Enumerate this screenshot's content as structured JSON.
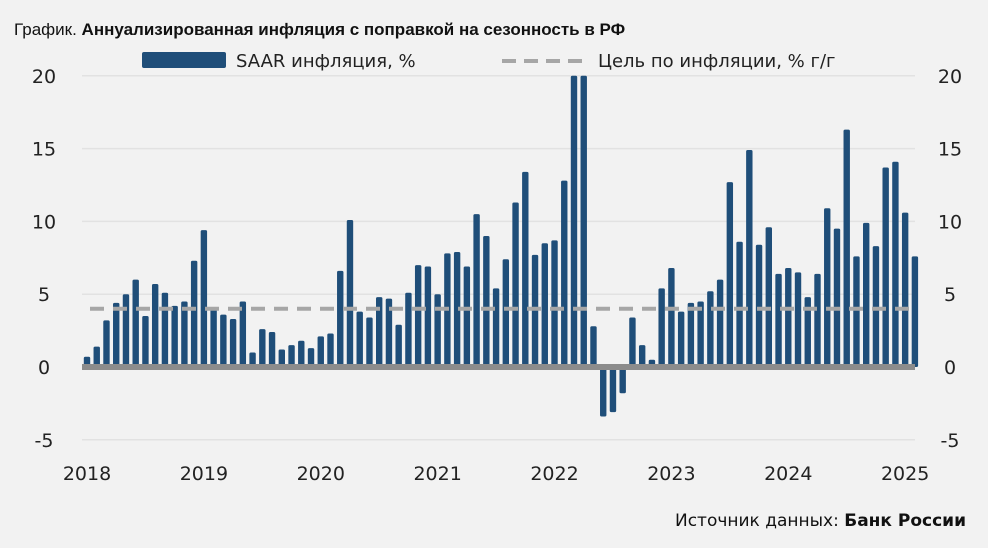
{
  "header": {
    "prefix": "График.",
    "title": "Аннуализированная инфляция с поправкой на сезонность в РФ"
  },
  "footer": {
    "source_label": "Источник данных:",
    "source_name": "Банк России"
  },
  "colors": {
    "bar": "#1f4e79",
    "target": "#a6a6a6",
    "zero": "#8c8c8c",
    "grid": "#e2e2e2",
    "background": "#f2f2f2"
  },
  "chart_data": {
    "type": "bar",
    "title": "Аннуализированная инфляция с поправкой на сезонность в РФ",
    "xlabel": "",
    "ylabel": "",
    "ylim": [
      -5,
      20
    ],
    "yticks": [
      "-5",
      "0",
      "5",
      "10",
      "15",
      "20"
    ],
    "xticks": [
      "2018",
      "2019",
      "2020",
      "2021",
      "2022",
      "2023",
      "2024",
      "2025"
    ],
    "grid": true,
    "legend": "top",
    "x_start": "2018-01",
    "frequency": "monthly",
    "series": [
      {
        "name": "SAAR инфляция, %",
        "type": "bar",
        "values": [
          0.7,
          1.4,
          3.2,
          4.4,
          5.0,
          6.0,
          3.5,
          5.7,
          5.1,
          4.2,
          4.5,
          7.3,
          9.4,
          4.0,
          3.6,
          3.3,
          4.5,
          1.0,
          2.6,
          2.4,
          1.2,
          1.5,
          1.8,
          1.3,
          2.1,
          2.3,
          6.6,
          10.1,
          3.8,
          3.4,
          4.8,
          4.7,
          2.9,
          5.1,
          7.0,
          6.9,
          5.0,
          7.8,
          7.9,
          6.9,
          10.5,
          9.0,
          5.4,
          7.4,
          11.3,
          13.4,
          7.7,
          8.5,
          8.7,
          12.8,
          20.0,
          20.0,
          2.8,
          -3.4,
          -3.1,
          -1.8,
          3.4,
          1.5,
          0.5,
          5.4,
          6.8,
          3.8,
          4.4,
          4.5,
          5.2,
          6.0,
          12.7,
          8.6,
          14.9,
          8.4,
          9.6,
          6.4,
          6.8,
          6.5,
          4.8,
          6.4,
          10.9,
          9.5,
          16.3,
          7.6,
          9.9,
          8.3,
          13.7,
          14.1,
          10.6,
          7.6
        ]
      },
      {
        "name": "Цель по инфляции, % г/г",
        "type": "dashed-line",
        "value": 4
      }
    ]
  }
}
